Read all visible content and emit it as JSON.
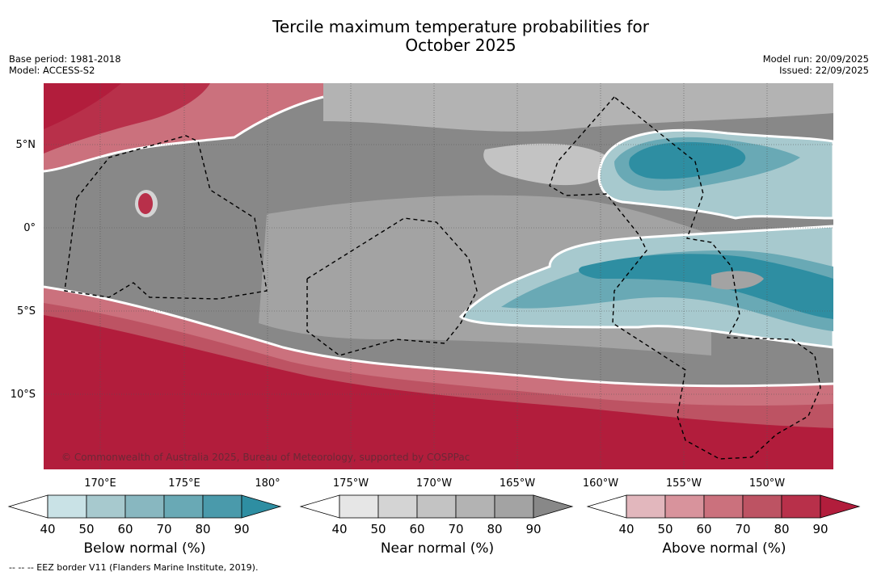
{
  "title": {
    "line1": "Tercile maximum temperature probabilities for",
    "line2": "October 2025"
  },
  "meta_left": {
    "base_period": "Base period: 1981-2018",
    "model": "Model: ACCESS-S2"
  },
  "meta_right": {
    "model_run": "Model run: 20/09/2025",
    "issued": "Issued: 22/09/2025"
  },
  "map": {
    "lat_labels": [
      "5°N",
      "0°",
      "5°S",
      "10°S"
    ],
    "lon_labels": [
      "170°E",
      "175°E",
      "180°",
      "175°W",
      "170°W",
      "165°W",
      "160°W",
      "155°W",
      "150°W"
    ],
    "credit": "© Commonwealth of Australia 2025, Bureau of Meteorology, supported by COSPPac"
  },
  "chart_data": {
    "type": "heatmap",
    "title": "Tercile maximum temperature probabilities for October 2025",
    "extent": {
      "lon_min": 167,
      "lon_max": 213.5,
      "lat_min": -14.5,
      "lat_max": 8.5
    },
    "regions": [
      {
        "category": "Above normal",
        "location": "north-west corner",
        "probability_range": "50-90%"
      },
      {
        "category": "Above normal",
        "location": "around 1.5°N, 172.5°E",
        "probability_range": "60-80%"
      },
      {
        "category": "Near normal",
        "location": "central equatorial band 170°E-165°W",
        "probability_range": "60-90%"
      },
      {
        "category": "Below normal",
        "location": "160°W-147°W, 2-6°N",
        "probability_range": "50-90%"
      },
      {
        "category": "Below normal",
        "location": "165°W-147°W, 1-7°S",
        "probability_range": "40-90%"
      },
      {
        "category": "Above normal",
        "location": "south of ~7°S",
        "probability_range": "70-90%"
      }
    ]
  },
  "colorbars": [
    {
      "name": "below-normal",
      "label": "Below normal (%)",
      "ticks": [
        "40",
        "50",
        "60",
        "70",
        "80",
        "90"
      ],
      "colors": [
        "#ffffff",
        "#c9e2e6",
        "#a7c9ce",
        "#88b7c0",
        "#69a9b5",
        "#4a9aab",
        "#2e8ea2"
      ]
    },
    {
      "name": "near-normal",
      "label": "Near normal (%)",
      "ticks": [
        "40",
        "50",
        "60",
        "70",
        "80",
        "90"
      ],
      "colors": [
        "#ffffff",
        "#e6e6e6",
        "#d4d4d4",
        "#c3c3c3",
        "#b3b3b3",
        "#a3a3a3",
        "#888888"
      ]
    },
    {
      "name": "above-normal",
      "label": "Above normal (%)",
      "ticks": [
        "40",
        "50",
        "60",
        "70",
        "80",
        "90"
      ],
      "colors": [
        "#ffffff",
        "#e2b7bd",
        "#d8939c",
        "#cb717d",
        "#bd5363",
        "#b8304a",
        "#b21d3c"
      ]
    }
  ],
  "footnote": "--  --  -- EEZ border V11 (Flanders Marine Institute, 2019)."
}
